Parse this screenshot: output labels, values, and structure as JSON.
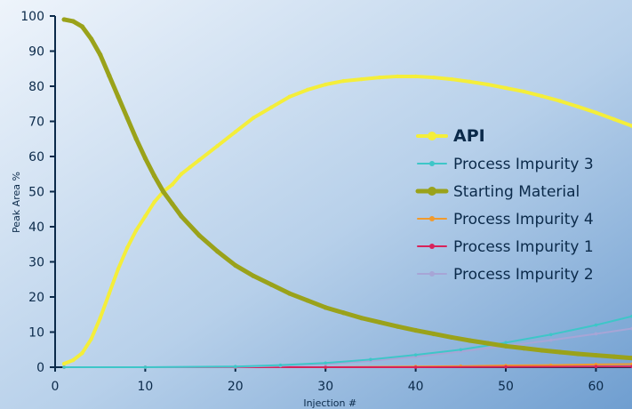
{
  "chart_data": {
    "type": "line",
    "title": "",
    "xlabel": "Injection #",
    "ylabel": "Peak Area %",
    "xlim": [
      0,
      64
    ],
    "ylim": [
      0,
      100
    ],
    "x_ticks": [
      0,
      10,
      20,
      30,
      40,
      50,
      60
    ],
    "y_ticks": [
      0,
      10,
      20,
      30,
      40,
      50,
      60,
      70,
      80,
      90,
      100
    ],
    "grid": false,
    "legend_position": "right",
    "colors": {
      "background_top": "#c9dcf0",
      "background_bottom": "#6f9ed0",
      "axis": "#0b2a4a"
    },
    "series": [
      {
        "name": "API",
        "color": "#f4ee3a",
        "stroke_width": 4,
        "marker_size": 2.2,
        "legend_bold": true,
        "x": [
          1,
          2,
          3,
          4,
          5,
          6,
          7,
          8,
          9,
          10,
          11,
          12,
          13,
          14,
          15,
          16,
          18,
          20,
          22,
          24,
          26,
          28,
          30,
          32,
          34,
          36,
          38,
          40,
          42,
          44,
          46,
          48,
          50,
          52,
          54,
          56,
          58,
          60,
          62,
          64
        ],
        "values": [
          1,
          2,
          4,
          8,
          14,
          21,
          28,
          34,
          39,
          43,
          47,
          50,
          52,
          55,
          57,
          59,
          63,
          67,
          71,
          74,
          77,
          79,
          80.5,
          81.5,
          82,
          82.5,
          82.8,
          82.8,
          82.5,
          82,
          81.3,
          80.5,
          79.5,
          78.5,
          77.2,
          75.8,
          74.2,
          72.5,
          70.6,
          68.7
        ]
      },
      {
        "name": "Process Impurity 3",
        "color": "#3ec6c8",
        "stroke_width": 2,
        "marker_size": 1.8,
        "legend_bold": false,
        "x": [
          1,
          10,
          20,
          25,
          30,
          35,
          40,
          45,
          50,
          55,
          60,
          64
        ],
        "values": [
          0,
          0,
          0.2,
          0.6,
          1.2,
          2.2,
          3.5,
          5,
          7,
          9.3,
          12,
          14.5
        ]
      },
      {
        "name": "Starting Material",
        "color": "#9aa21a",
        "stroke_width": 5,
        "marker_size": 2.6,
        "legend_bold": false,
        "x": [
          1,
          2,
          3,
          4,
          5,
          6,
          7,
          8,
          9,
          10,
          11,
          12,
          13,
          14,
          16,
          18,
          20,
          22,
          24,
          26,
          28,
          30,
          32,
          34,
          36,
          38,
          40,
          42,
          44,
          46,
          48,
          50,
          52,
          54,
          56,
          58,
          60,
          62,
          64
        ],
        "values": [
          99,
          98.5,
          97,
          93.5,
          89,
          83,
          77,
          71,
          65,
          59.5,
          54.5,
          50,
          46.5,
          43,
          37.5,
          33,
          29,
          26,
          23.5,
          21,
          19,
          17,
          15.5,
          14,
          12.8,
          11.6,
          10.5,
          9.5,
          8.5,
          7.6,
          6.8,
          6,
          5.4,
          4.8,
          4.3,
          3.8,
          3.4,
          3,
          2.6
        ]
      },
      {
        "name": "Process Impurity 4",
        "color": "#f19a2c",
        "stroke_width": 2,
        "marker_size": 1.8,
        "legend_bold": false,
        "x": [
          1,
          10,
          20,
          30,
          40,
          45,
          50,
          55,
          60,
          64
        ],
        "values": [
          0,
          0,
          0,
          0,
          0.2,
          0.3,
          0.5,
          0.6,
          0.8,
          0.9
        ]
      },
      {
        "name": "Process Impurity 1",
        "color": "#d8225a",
        "stroke_width": 2,
        "marker_size": 1.8,
        "legend_bold": false,
        "x": [
          1,
          10,
          20,
          30,
          40,
          50,
          60,
          64
        ],
        "values": [
          0,
          0,
          0,
          0,
          0,
          0.1,
          0.2,
          0.2
        ]
      },
      {
        "name": "Process Impurity 2",
        "color": "#a7a5d6",
        "stroke_width": 2,
        "marker_size": 1.8,
        "legend_bold": false,
        "x": [
          1,
          10,
          20,
          25,
          30,
          35,
          40,
          45,
          50,
          55,
          60,
          64
        ],
        "values": [
          0,
          0,
          0.1,
          0.4,
          0.9,
          1.8,
          3,
          4.5,
          6,
          7.7,
          9.5,
          11
        ]
      }
    ]
  }
}
